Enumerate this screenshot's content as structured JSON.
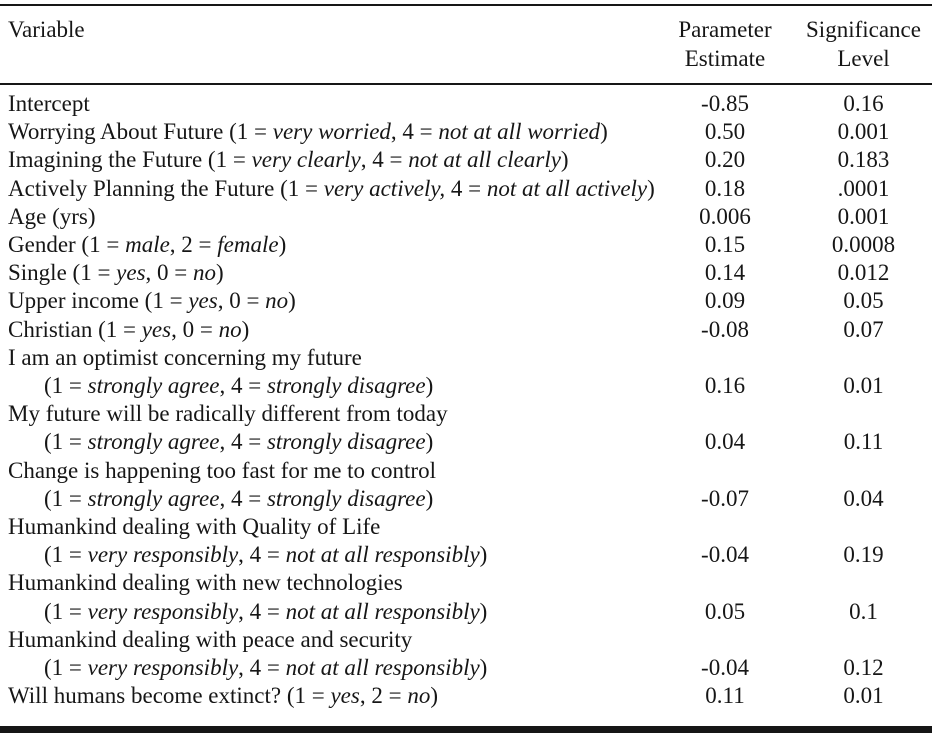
{
  "table": {
    "columns": {
      "variable": "Variable",
      "parameter_estimate": [
        "Parameter",
        "Estimate"
      ],
      "significance_level": [
        "Significance",
        "Level"
      ]
    },
    "rows": [
      {
        "line1": [
          {
            "t": "Intercept"
          }
        ],
        "estimate": "-0.85",
        "significance": "0.16"
      },
      {
        "line1": [
          {
            "t": "Worrying About Future (1 = "
          },
          {
            "t": "very worried",
            "i": true
          },
          {
            "t": ", 4 = "
          },
          {
            "t": "not at all worried",
            "i": true
          },
          {
            "t": ")"
          }
        ],
        "estimate": "0.50",
        "significance": "0.001"
      },
      {
        "line1": [
          {
            "t": "Imagining the Future (1 = "
          },
          {
            "t": "very clearly",
            "i": true
          },
          {
            "t": ", 4 = "
          },
          {
            "t": "not at all clearly",
            "i": true
          },
          {
            "t": ")"
          }
        ],
        "estimate": "0.20",
        "significance": "0.183"
      },
      {
        "line1": [
          {
            "t": "Actively Planning the Future (1 = "
          },
          {
            "t": "very actively,",
            "i": true
          },
          {
            "t": " 4 = "
          },
          {
            "t": "not at all actively",
            "i": true
          },
          {
            "t": ")"
          }
        ],
        "estimate": "0.18",
        "significance": ".0001"
      },
      {
        "line1": [
          {
            "t": "Age (yrs)"
          }
        ],
        "estimate": "0.006",
        "significance": "0.001"
      },
      {
        "line1": [
          {
            "t": "Gender (1 = "
          },
          {
            "t": "male",
            "i": true
          },
          {
            "t": ", 2 = "
          },
          {
            "t": "female",
            "i": true
          },
          {
            "t": ")"
          }
        ],
        "estimate": "0.15",
        "significance": "0.0008"
      },
      {
        "line1": [
          {
            "t": "Single (1 = "
          },
          {
            "t": "yes",
            "i": true
          },
          {
            "t": ", 0 = "
          },
          {
            "t": "no",
            "i": true
          },
          {
            "t": ")"
          }
        ],
        "estimate": "0.14",
        "significance": "0.012"
      },
      {
        "line1": [
          {
            "t": "Upper income (1 = "
          },
          {
            "t": "yes",
            "i": true
          },
          {
            "t": ", 0 = "
          },
          {
            "t": "no",
            "i": true
          },
          {
            "t": ")"
          }
        ],
        "estimate": "0.09",
        "significance": "0.05"
      },
      {
        "line1": [
          {
            "t": "Christian (1 = "
          },
          {
            "t": "yes",
            "i": true
          },
          {
            "t": ", 0 = "
          },
          {
            "t": "no",
            "i": true
          },
          {
            "t": ")"
          }
        ],
        "estimate": "-0.08",
        "significance": "0.07"
      },
      {
        "line1": [
          {
            "t": "I am an optimist concerning my future"
          }
        ],
        "line2": [
          {
            "t": "(1 = "
          },
          {
            "t": "strongly agree",
            "i": true
          },
          {
            "t": ", 4 = "
          },
          {
            "t": "strongly disagree",
            "i": true
          },
          {
            "t": ")"
          }
        ],
        "estimate": "0.16",
        "significance": "0.01"
      },
      {
        "line1": [
          {
            "t": "My future will be radically different from today"
          }
        ],
        "line2": [
          {
            "t": "(1 = "
          },
          {
            "t": "strongly agree",
            "i": true
          },
          {
            "t": ", 4 = "
          },
          {
            "t": "strongly disagree",
            "i": true
          },
          {
            "t": ")"
          }
        ],
        "estimate": "0.04",
        "significance": "0.11"
      },
      {
        "line1": [
          {
            "t": "Change is happening too fast for me to control"
          }
        ],
        "line2": [
          {
            "t": "(1 = "
          },
          {
            "t": "strongly agree",
            "i": true
          },
          {
            "t": ", 4 = "
          },
          {
            "t": "strongly disagree",
            "i": true
          },
          {
            "t": ")"
          }
        ],
        "estimate": "-0.07",
        "significance": "0.04"
      },
      {
        "line1": [
          {
            "t": "Humankind dealing with Quality of Life"
          }
        ],
        "line2": [
          {
            "t": "(1 = "
          },
          {
            "t": "very responsibly",
            "i": true
          },
          {
            "t": ", 4 = "
          },
          {
            "t": "not at all responsibly",
            "i": true
          },
          {
            "t": ")"
          }
        ],
        "estimate": "-0.04",
        "significance": "0.19"
      },
      {
        "line1": [
          {
            "t": "Humankind dealing with new technologies"
          }
        ],
        "line2": [
          {
            "t": "(1 = "
          },
          {
            "t": "very responsibly",
            "i": true
          },
          {
            "t": ", 4 = "
          },
          {
            "t": "not at all responsibly",
            "i": true
          },
          {
            "t": ")"
          }
        ],
        "estimate": "0.05",
        "significance": "0.1"
      },
      {
        "line1": [
          {
            "t": "Humankind dealing with peace and security"
          }
        ],
        "line2": [
          {
            "t": "(1 = "
          },
          {
            "t": "very responsibly",
            "i": true
          },
          {
            "t": ", 4 = "
          },
          {
            "t": "not at all responsibly",
            "i": true
          },
          {
            "t": ")"
          }
        ],
        "estimate": "-0.04",
        "significance": "0.12"
      },
      {
        "line1": [
          {
            "t": "Will humans become extinct? (1 = "
          },
          {
            "t": "yes",
            "i": true
          },
          {
            "t": ", 2 = "
          },
          {
            "t": "no",
            "i": true
          },
          {
            "t": ")"
          }
        ],
        "estimate": "0.11",
        "significance": "0.01"
      }
    ]
  }
}
